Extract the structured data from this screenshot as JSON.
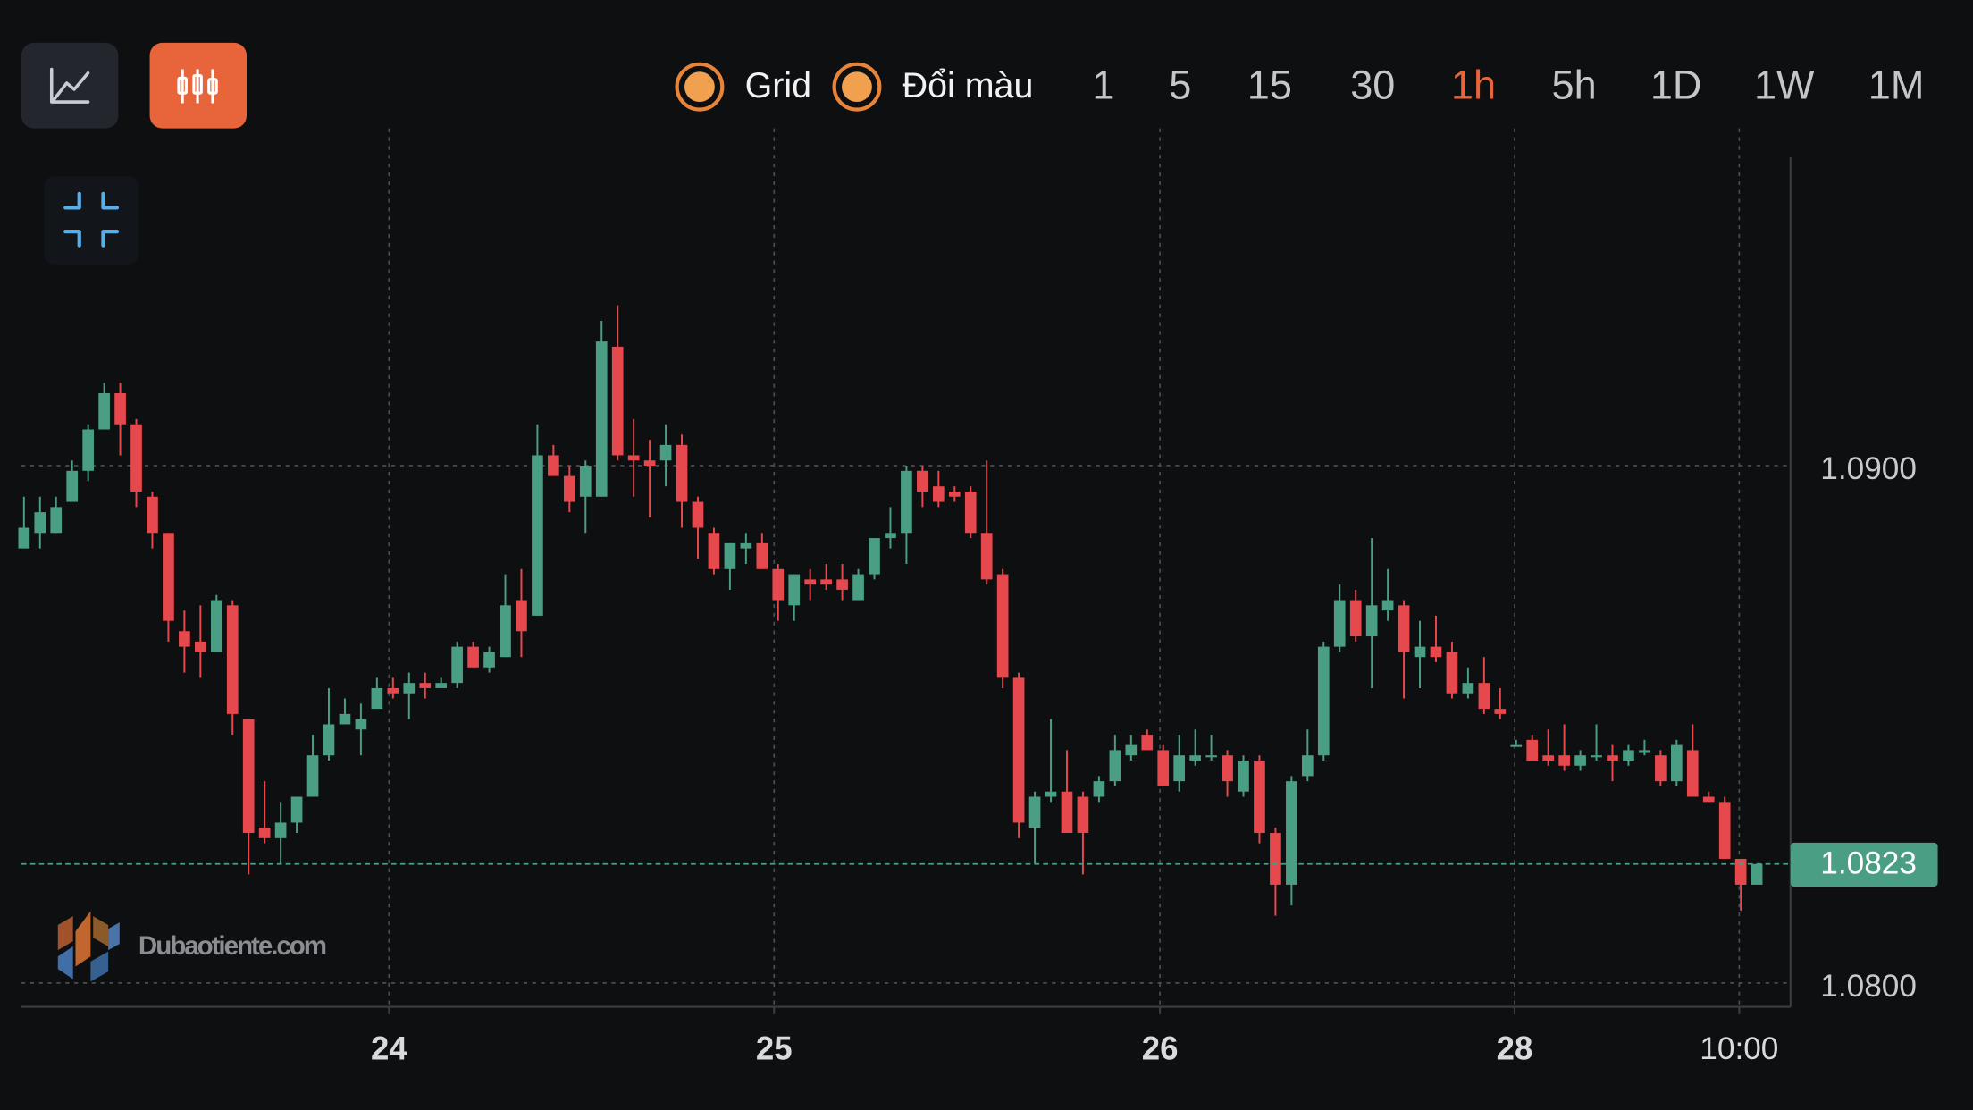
{
  "toolbar": {
    "options": [
      "Grid",
      "Đổi màu"
    ],
    "intervals": [
      {
        "label": "1"
      },
      {
        "label": "5"
      },
      {
        "label": "15"
      },
      {
        "label": "30"
      },
      {
        "label": "1h",
        "active": true
      },
      {
        "label": "5h"
      },
      {
        "label": "1D"
      },
      {
        "label": "1W"
      },
      {
        "label": "1M"
      }
    ]
  },
  "watermark": "Dubaotiente.com",
  "chart_data": {
    "type": "candlestick",
    "grid": true,
    "up_color": "#4a9e83",
    "down_color": "#e5484d",
    "xlim": [
      -0.16,
      110.1
    ],
    "xticks": [
      {
        "value": 22.75,
        "label": "24"
      },
      {
        "value": 46.75,
        "label": "25"
      },
      {
        "value": 70.8,
        "label": "26"
      },
      {
        "value": 92.9,
        "label": "28"
      },
      {
        "value": 106.9,
        "label": "10:00"
      }
    ],
    "ylim": [
      1.07954,
      1.09596
    ],
    "yticks": [
      {
        "value": 1.08,
        "label": "1.0800"
      },
      {
        "value": 1.09,
        "label": "1.0900"
      }
    ],
    "last_price": 1.0823,
    "candles": [
      [
        1.0884,
        1.0894,
        1.0884,
        1.0888
      ],
      [
        1.0887,
        1.0894,
        1.0884,
        1.0891
      ],
      [
        1.0887,
        1.0894,
        1.0887,
        1.0892
      ],
      [
        1.0893,
        1.0901,
        1.0893,
        1.0899
      ],
      [
        1.0899,
        1.0908,
        1.0897,
        1.0907
      ],
      [
        1.0907,
        1.0916,
        1.0907,
        1.0914
      ],
      [
        1.0914,
        1.0916,
        1.0902,
        1.0908
      ],
      [
        1.0908,
        1.0909,
        1.0892,
        1.0895
      ],
      [
        1.0894,
        1.0895,
        1.0884,
        1.0887
      ],
      [
        1.0887,
        1.0887,
        1.0866,
        1.087
      ],
      [
        1.0868,
        1.0872,
        1.086,
        1.0865
      ],
      [
        1.0866,
        1.0873,
        1.0859,
        1.0864
      ],
      [
        1.0864,
        1.0875,
        1.0864,
        1.0874
      ],
      [
        1.0873,
        1.0874,
        1.0848,
        1.0852
      ],
      [
        1.0851,
        1.0851,
        1.0821,
        1.0829
      ],
      [
        1.083,
        1.0839,
        1.0827,
        1.0828
      ],
      [
        1.0828,
        1.0835,
        1.0823,
        1.0831
      ],
      [
        1.0831,
        1.0836,
        1.0829,
        1.0836
      ],
      [
        1.0836,
        1.0848,
        1.0836,
        1.0844
      ],
      [
        1.0844,
        1.0857,
        1.0843,
        1.085
      ],
      [
        1.085,
        1.0855,
        1.085,
        1.0852
      ],
      [
        1.0849,
        1.0854,
        1.0844,
        1.0851
      ],
      [
        1.0853,
        1.0859,
        1.0853,
        1.0857
      ],
      [
        1.0857,
        1.0859,
        1.0855,
        1.0856
      ],
      [
        1.0856,
        1.086,
        1.0851,
        1.0858
      ],
      [
        1.0858,
        1.086,
        1.0855,
        1.0857
      ],
      [
        1.0857,
        1.0859,
        1.0857,
        1.0858
      ],
      [
        1.0858,
        1.0866,
        1.0857,
        1.0865
      ],
      [
        1.0865,
        1.0866,
        1.0861,
        1.0861
      ],
      [
        1.0861,
        1.0865,
        1.086,
        1.0864
      ],
      [
        1.0863,
        1.0879,
        1.0863,
        1.0873
      ],
      [
        1.0874,
        1.088,
        1.0863,
        1.0868
      ],
      [
        1.0871,
        1.0908,
        1.0871,
        1.0902
      ],
      [
        1.0902,
        1.0904,
        1.0898,
        1.0898
      ],
      [
        1.0898,
        1.09,
        1.0891,
        1.0893
      ],
      [
        1.0894,
        1.0901,
        1.0887,
        1.09
      ],
      [
        1.0894,
        1.0928,
        1.0894,
        1.0924
      ],
      [
        1.0923,
        1.0931,
        1.0901,
        1.0902
      ],
      [
        1.0902,
        1.0909,
        1.0894,
        1.0901
      ],
      [
        1.0901,
        1.0905,
        1.089,
        1.09
      ],
      [
        1.0901,
        1.0908,
        1.0896,
        1.0904
      ],
      [
        1.0904,
        1.0906,
        1.0888,
        1.0893
      ],
      [
        1.0893,
        1.0894,
        1.0882,
        1.0888
      ],
      [
        1.0887,
        1.0888,
        1.0879,
        1.088
      ],
      [
        1.088,
        1.0885,
        1.0876,
        1.0885
      ],
      [
        1.0884,
        1.0887,
        1.0881,
        1.0885
      ],
      [
        1.0885,
        1.0887,
        1.088,
        1.088
      ],
      [
        1.088,
        1.0881,
        1.087,
        1.0874
      ],
      [
        1.0873,
        1.0879,
        1.087,
        1.0879
      ],
      [
        1.0878,
        1.088,
        1.0874,
        1.0877
      ],
      [
        1.0878,
        1.0881,
        1.0876,
        1.0877
      ],
      [
        1.0878,
        1.0881,
        1.0874,
        1.0876
      ],
      [
        1.0874,
        1.088,
        1.0874,
        1.0879
      ],
      [
        1.0879,
        1.0886,
        1.0878,
        1.0886
      ],
      [
        1.0886,
        1.0892,
        1.0884,
        1.0887
      ],
      [
        1.0887,
        1.09,
        1.0881,
        1.0899
      ],
      [
        1.0899,
        1.09,
        1.0892,
        1.0895
      ],
      [
        1.0896,
        1.0899,
        1.0892,
        1.0893
      ],
      [
        1.0895,
        1.0896,
        1.0893,
        1.0894
      ],
      [
        1.0895,
        1.0896,
        1.0886,
        1.0887
      ],
      [
        1.0887,
        1.0901,
        1.0877,
        1.0878
      ],
      [
        1.0879,
        1.088,
        1.0857,
        1.0859
      ],
      [
        1.0859,
        1.086,
        1.0828,
        1.0831
      ],
      [
        1.083,
        1.0837,
        1.0823,
        1.0836
      ],
      [
        1.0836,
        1.0851,
        1.0835,
        1.0837
      ],
      [
        1.0837,
        1.0845,
        1.0829,
        1.0829
      ],
      [
        1.0836,
        1.0837,
        1.0821,
        1.0829
      ],
      [
        1.0836,
        1.084,
        1.0835,
        1.0839
      ],
      [
        1.0839,
        1.0848,
        1.0838,
        1.0845
      ],
      [
        1.0844,
        1.0848,
        1.0843,
        1.0846
      ],
      [
        1.0848,
        1.0849,
        1.0845,
        1.0845
      ],
      [
        1.0845,
        1.0846,
        1.0838,
        1.0838
      ],
      [
        1.0839,
        1.0848,
        1.0837,
        1.0844
      ],
      [
        1.0843,
        1.0849,
        1.0842,
        1.0844
      ],
      [
        1.0844,
        1.0848,
        1.0843,
        1.0844
      ],
      [
        1.0844,
        1.0845,
        1.0836,
        1.0839
      ],
      [
        1.0837,
        1.0844,
        1.0836,
        1.0843
      ],
      [
        1.0843,
        1.0844,
        1.0827,
        1.0829
      ],
      [
        1.0829,
        1.083,
        1.0813,
        1.0819
      ],
      [
        1.0819,
        1.084,
        1.0815,
        1.0839
      ],
      [
        1.084,
        1.0849,
        1.0839,
        1.0844
      ],
      [
        1.0844,
        1.0866,
        1.0843,
        1.0865
      ],
      [
        1.0865,
        1.0877,
        1.0864,
        1.0874
      ],
      [
        1.0874,
        1.0876,
        1.0866,
        1.0867
      ],
      [
        1.0867,
        1.0886,
        1.0857,
        1.0873
      ],
      [
        1.0872,
        1.088,
        1.087,
        1.0874
      ],
      [
        1.0873,
        1.0874,
        1.0855,
        1.0864
      ],
      [
        1.0863,
        1.087,
        1.0857,
        1.0865
      ],
      [
        1.0865,
        1.0871,
        1.0862,
        1.0863
      ],
      [
        1.0864,
        1.0866,
        1.0855,
        1.0856
      ],
      [
        1.0856,
        1.0861,
        1.0855,
        1.0858
      ],
      [
        1.0858,
        1.0863,
        1.0852,
        1.0853
      ],
      [
        1.0853,
        1.0857,
        1.0851,
        1.0852
      ],
      [
        1.0846,
        1.0847,
        1.0846,
        1.0846
      ],
      [
        1.0847,
        1.0848,
        1.0843,
        1.0843
      ],
      [
        1.0844,
        1.0849,
        1.0842,
        1.0843
      ],
      [
        1.0844,
        1.085,
        1.0841,
        1.0842
      ],
      [
        1.0842,
        1.0845,
        1.0841,
        1.0844
      ],
      [
        1.0844,
        1.085,
        1.0843,
        1.0844
      ],
      [
        1.0844,
        1.0846,
        1.0839,
        1.0843
      ],
      [
        1.0843,
        1.0846,
        1.0842,
        1.0845
      ],
      [
        1.0845,
        1.0847,
        1.0844,
        1.0845
      ],
      [
        1.0844,
        1.0845,
        1.0838,
        1.0839
      ],
      [
        1.0839,
        1.0847,
        1.0838,
        1.0846
      ],
      [
        1.0845,
        1.085,
        1.0836,
        1.0836
      ],
      [
        1.0836,
        1.0837,
        1.0835,
        1.0835
      ],
      [
        1.0835,
        1.0836,
        1.0824,
        1.0824
      ],
      [
        1.0824,
        1.0824,
        1.0814,
        1.0819
      ],
      [
        1.0819,
        1.0823,
        1.0819,
        1.0823
      ]
    ]
  }
}
